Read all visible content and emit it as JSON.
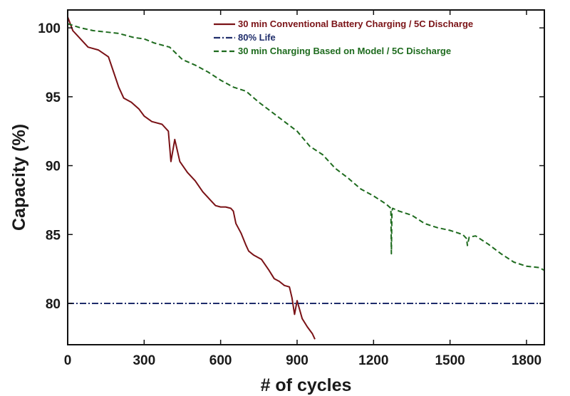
{
  "chart_data": {
    "type": "line",
    "title": "",
    "xlabel": "# of cycles",
    "ylabel": "Capacity (%)",
    "xlim": [
      0,
      1870
    ],
    "ylim": [
      77,
      101.3
    ],
    "grid": false,
    "legend_position": "top-right",
    "x_ticks": [
      0,
      300,
      600,
      900,
      1200,
      1500,
      1800
    ],
    "x_tick_labels": [
      "0",
      "300",
      "600",
      "900",
      "1200",
      "1500",
      "1800"
    ],
    "y_ticks": [
      80,
      85,
      90,
      95,
      100
    ],
    "y_tick_labels": [
      "80",
      "85",
      "90",
      "95",
      "100"
    ],
    "series": [
      {
        "name": "30 min Conventional Battery Charging / 5C Discharge",
        "color": "#7a1216",
        "style": "solid",
        "x": [
          0,
          20,
          50,
          80,
          120,
          160,
          180,
          200,
          220,
          250,
          280,
          300,
          330,
          370,
          395,
          405,
          420,
          440,
          470,
          500,
          530,
          560,
          580,
          600,
          620,
          640,
          650,
          660,
          680,
          700,
          710,
          730,
          760,
          790,
          810,
          830,
          850,
          870,
          880,
          890,
          900,
          920,
          940,
          960,
          970
        ],
        "y": [
          100.8,
          99.8,
          99.2,
          98.6,
          98.4,
          97.9,
          96.8,
          95.7,
          94.9,
          94.6,
          94.1,
          93.6,
          93.2,
          93.0,
          92.5,
          90.3,
          91.9,
          90.3,
          89.5,
          88.9,
          88.1,
          87.5,
          87.1,
          87.0,
          87.0,
          86.9,
          86.7,
          85.8,
          85.1,
          84.2,
          83.8,
          83.5,
          83.2,
          82.4,
          81.8,
          81.6,
          81.3,
          81.2,
          80.4,
          79.2,
          80.2,
          78.9,
          78.3,
          77.8,
          77.4
        ]
      },
      {
        "name": "80% Life",
        "color": "#1f2d6b",
        "style": "dash-dot",
        "x": [
          0,
          1870
        ],
        "y": [
          80,
          80
        ]
      },
      {
        "name": "30 min Charging Based on Model / 5C Discharge",
        "color": "#1e6b1e",
        "style": "dashed",
        "x": [
          0,
          50,
          100,
          200,
          260,
          300,
          340,
          400,
          450,
          500,
          550,
          600,
          650,
          700,
          750,
          800,
          850,
          900,
          950,
          1000,
          1050,
          1100,
          1150,
          1200,
          1250,
          1268,
          1270,
          1272,
          1275,
          1300,
          1350,
          1400,
          1450,
          1500,
          1550,
          1565,
          1568,
          1575,
          1600,
          1650,
          1700,
          1750,
          1800,
          1850,
          1870
        ],
        "y": [
          100.3,
          100.0,
          99.8,
          99.6,
          99.3,
          99.2,
          98.9,
          98.6,
          97.7,
          97.3,
          96.8,
          96.2,
          95.7,
          95.4,
          94.6,
          93.9,
          93.2,
          92.5,
          91.4,
          90.8,
          89.8,
          89.1,
          88.3,
          87.8,
          87.2,
          86.9,
          83.6,
          86.7,
          86.9,
          86.7,
          86.4,
          85.8,
          85.5,
          85.3,
          85.0,
          84.7,
          84.2,
          84.8,
          84.9,
          84.3,
          83.6,
          83.0,
          82.7,
          82.6,
          82.4
        ]
      }
    ]
  }
}
